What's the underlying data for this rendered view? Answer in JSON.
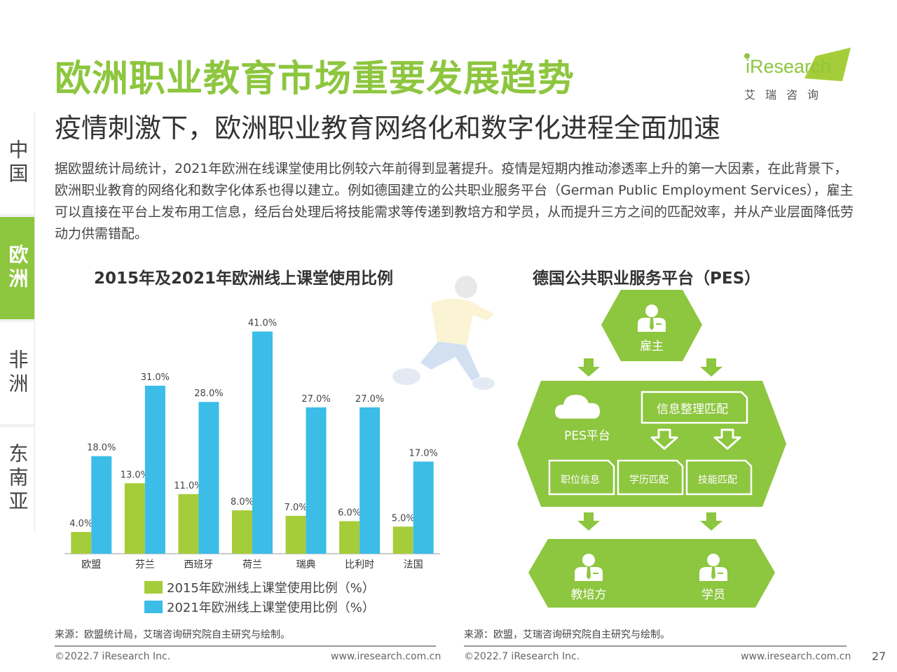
{
  "header": {
    "title": "欧洲职业教育市场重要发展趋势",
    "subtitle": "疫情刺激下，欧洲职业教育网络化和数字化进程全面加速"
  },
  "logo": {
    "brand": "iResearch",
    "cn": "艾瑞咨询"
  },
  "body_text": "据欧盟统计局统计，2021年欧洲在线课堂使用比例较六年前得到显著提升。疫情是短期内推动渗透率上升的第一大因素，在此背景下，欧洲职业教育的网络化和数字化体系也得以建立。例如德国建立的公共职业服务平台（German Public Employment Services），雇主可以直接在平台上发布用工信息，经后台处理后将技能需求等传递到教培方和学员，从而提升三方之间的匹配效率，并从产业层面降低劳动力供需错配。",
  "side_nav": {
    "items": [
      {
        "label": "中国",
        "active": false
      },
      {
        "label": "欧洲",
        "active": true
      },
      {
        "label": "非洲",
        "active": false
      },
      {
        "label": "东南亚",
        "active": false
      }
    ]
  },
  "colors": {
    "accent": "#8dc63f",
    "series_2015": "#a5cd39",
    "series_2021": "#3bbde8"
  },
  "chart_data": {
    "type": "bar",
    "title": "2015年及2021年欧洲线上课堂使用比例",
    "categories": [
      "欧盟",
      "芬兰",
      "西班牙",
      "荷兰",
      "瑞典",
      "比利时",
      "法国"
    ],
    "series": [
      {
        "name": "2015年欧洲线上课堂使用比例（%）",
        "values": [
          4.0,
          13.0,
          11.0,
          8.0,
          7.0,
          6.0,
          5.0
        ],
        "labels": [
          "4.0%",
          "13.0%",
          "11.0%",
          "8.0%",
          "7.0%",
          "6.0%",
          "5.0%"
        ]
      },
      {
        "name": "2021年欧洲线上课堂使用比例（%）",
        "values": [
          18.0,
          31.0,
          28.0,
          41.0,
          27.0,
          27.0,
          17.0
        ],
        "labels": [
          "18.0%",
          "31.0%",
          "28.0%",
          "41.0%",
          "27.0%",
          "27.0%",
          "17.0%"
        ]
      }
    ],
    "ylim": [
      0,
      45
    ],
    "grid": false,
    "legend": "bottom"
  },
  "diagram": {
    "title": "德国公共职业服务平台（PES）",
    "employer": "雇主",
    "platform": "PES平台",
    "info_match": "信息整理匹配",
    "sub_boxes": [
      "职位信息",
      "学历匹配",
      "技能匹配"
    ],
    "trainer": "教培方",
    "student": "学员"
  },
  "sources": {
    "left": "来源：欧盟统计局，艾瑞咨询研究院自主研究与绘制。",
    "right": "来源：欧盟，艾瑞咨询研究院自主研究与绘制。"
  },
  "footer": {
    "copyright": "©2022.7 iResearch Inc.",
    "site": "www.iresearch.com.cn",
    "page": "27"
  }
}
